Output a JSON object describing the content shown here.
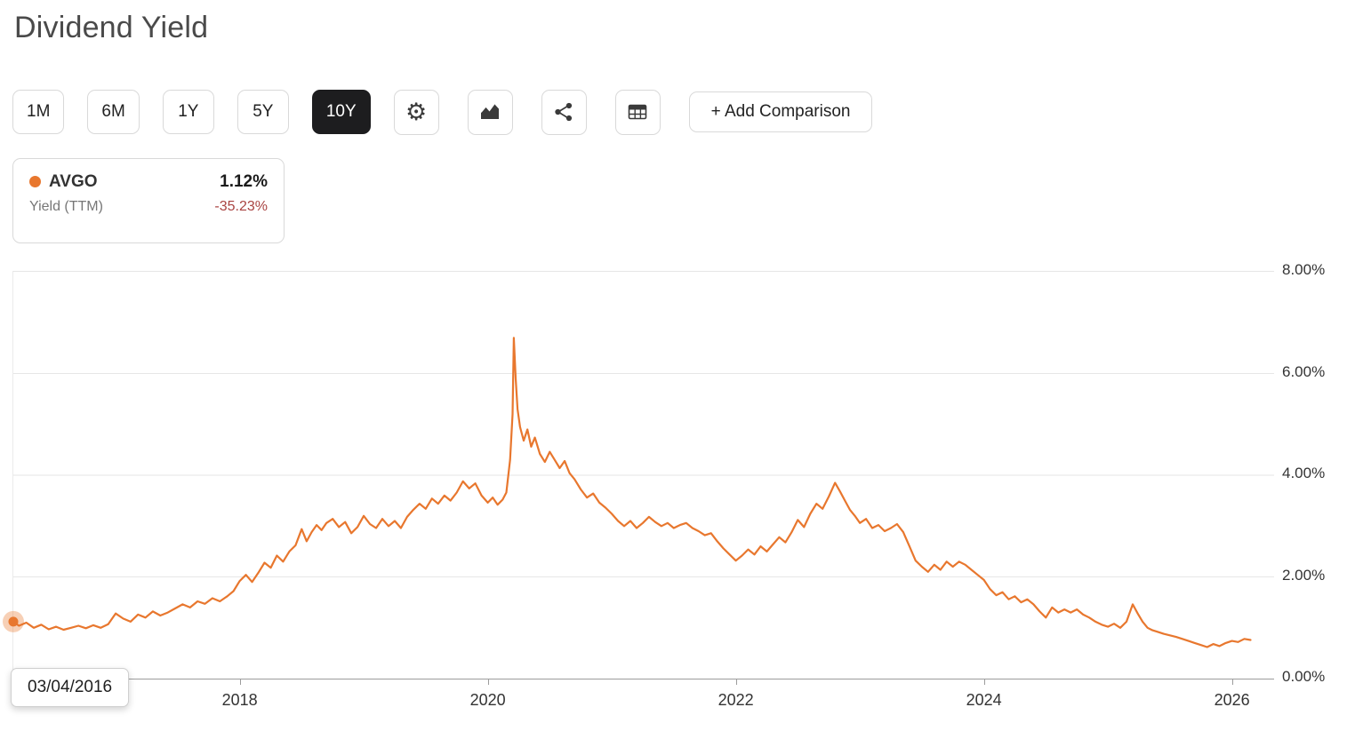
{
  "page": {
    "title": "Dividend Yield"
  },
  "toolbar": {
    "ranges": [
      {
        "label": "1M",
        "active": false
      },
      {
        "label": "6M",
        "active": false
      },
      {
        "label": "1Y",
        "active": false
      },
      {
        "label": "5Y",
        "active": false
      },
      {
        "label": "10Y",
        "active": true
      }
    ],
    "icons": [
      {
        "name": "settings-icon"
      },
      {
        "name": "area-chart-icon"
      },
      {
        "name": "share-icon"
      },
      {
        "name": "table-icon"
      }
    ],
    "add_comparison_label": "+ Add Comparison"
  },
  "legend": {
    "ticker": "AVGO",
    "metric": "Yield (TTM)",
    "value": "1.12%",
    "change": "-35.23%",
    "dot_color": "#E8772E",
    "change_color": "#A94442"
  },
  "tooltip": {
    "date": "03/04/2016"
  },
  "chart_data": {
    "type": "line",
    "title": "Dividend Yield",
    "ylabel": "Yield (TTM) %",
    "x_range": [
      2016.175,
      2026.34
    ],
    "ylim": [
      0,
      8
    ],
    "grid": true,
    "legend_position": "top-left",
    "line_color": "#E8772E",
    "grid_values": [
      2,
      4,
      6
    ],
    "yticks": [
      {
        "value": 0,
        "label": "0.00%"
      },
      {
        "value": 2,
        "label": "2.00%"
      },
      {
        "value": 4,
        "label": "4.00%"
      },
      {
        "value": 6,
        "label": "6.00%"
      },
      {
        "value": 8,
        "label": "8.00%"
      }
    ],
    "xticks": [
      {
        "value": 2018,
        "label": "2018"
      },
      {
        "value": 2020,
        "label": "2020"
      },
      {
        "value": 2022,
        "label": "2022"
      },
      {
        "value": 2024,
        "label": "2024"
      },
      {
        "value": 2026,
        "label": "2026"
      }
    ],
    "hover_marker": {
      "x": 2016.175,
      "y": 1.12,
      "halo_color": "rgba(232,119,46,0.35)"
    },
    "series": [
      {
        "name": "AVGO Yield (TTM)",
        "color": "#E8772E",
        "points": [
          [
            2016.175,
            1.12
          ],
          [
            2016.22,
            1.04
          ],
          [
            2016.28,
            1.1
          ],
          [
            2016.34,
            1.0
          ],
          [
            2016.4,
            1.06
          ],
          [
            2016.46,
            0.97
          ],
          [
            2016.52,
            1.02
          ],
          [
            2016.58,
            0.96
          ],
          [
            2016.64,
            1.0
          ],
          [
            2016.7,
            1.04
          ],
          [
            2016.76,
            0.99
          ],
          [
            2016.82,
            1.05
          ],
          [
            2016.88,
            1.0
          ],
          [
            2016.94,
            1.07
          ],
          [
            2017.0,
            1.28
          ],
          [
            2017.06,
            1.18
          ],
          [
            2017.12,
            1.12
          ],
          [
            2017.18,
            1.26
          ],
          [
            2017.24,
            1.2
          ],
          [
            2017.3,
            1.32
          ],
          [
            2017.36,
            1.24
          ],
          [
            2017.42,
            1.3
          ],
          [
            2017.48,
            1.38
          ],
          [
            2017.54,
            1.46
          ],
          [
            2017.6,
            1.4
          ],
          [
            2017.66,
            1.52
          ],
          [
            2017.72,
            1.47
          ],
          [
            2017.78,
            1.58
          ],
          [
            2017.84,
            1.52
          ],
          [
            2017.9,
            1.62
          ],
          [
            2017.95,
            1.72
          ],
          [
            2018.0,
            1.92
          ],
          [
            2018.05,
            2.04
          ],
          [
            2018.1,
            1.9
          ],
          [
            2018.15,
            2.08
          ],
          [
            2018.2,
            2.28
          ],
          [
            2018.25,
            2.18
          ],
          [
            2018.3,
            2.42
          ],
          [
            2018.35,
            2.3
          ],
          [
            2018.4,
            2.5
          ],
          [
            2018.45,
            2.62
          ],
          [
            2018.5,
            2.94
          ],
          [
            2018.54,
            2.7
          ],
          [
            2018.58,
            2.88
          ],
          [
            2018.62,
            3.02
          ],
          [
            2018.66,
            2.92
          ],
          [
            2018.7,
            3.06
          ],
          [
            2018.75,
            3.14
          ],
          [
            2018.8,
            2.98
          ],
          [
            2018.85,
            3.08
          ],
          [
            2018.9,
            2.86
          ],
          [
            2018.95,
            2.98
          ],
          [
            2019.0,
            3.2
          ],
          [
            2019.05,
            3.04
          ],
          [
            2019.1,
            2.96
          ],
          [
            2019.15,
            3.14
          ],
          [
            2019.2,
            3.0
          ],
          [
            2019.25,
            3.1
          ],
          [
            2019.3,
            2.96
          ],
          [
            2019.35,
            3.18
          ],
          [
            2019.4,
            3.32
          ],
          [
            2019.45,
            3.44
          ],
          [
            2019.5,
            3.34
          ],
          [
            2019.55,
            3.54
          ],
          [
            2019.6,
            3.44
          ],
          [
            2019.65,
            3.6
          ],
          [
            2019.7,
            3.5
          ],
          [
            2019.75,
            3.66
          ],
          [
            2019.8,
            3.88
          ],
          [
            2019.85,
            3.74
          ],
          [
            2019.9,
            3.84
          ],
          [
            2019.95,
            3.6
          ],
          [
            2020.0,
            3.46
          ],
          [
            2020.04,
            3.56
          ],
          [
            2020.08,
            3.42
          ],
          [
            2020.12,
            3.52
          ],
          [
            2020.15,
            3.66
          ],
          [
            2020.18,
            4.3
          ],
          [
            2020.2,
            5.2
          ],
          [
            2020.21,
            6.7
          ],
          [
            2020.225,
            5.9
          ],
          [
            2020.24,
            5.3
          ],
          [
            2020.26,
            4.95
          ],
          [
            2020.29,
            4.68
          ],
          [
            2020.32,
            4.9
          ],
          [
            2020.35,
            4.56
          ],
          [
            2020.38,
            4.74
          ],
          [
            2020.42,
            4.42
          ],
          [
            2020.46,
            4.26
          ],
          [
            2020.5,
            4.46
          ],
          [
            2020.54,
            4.3
          ],
          [
            2020.58,
            4.14
          ],
          [
            2020.62,
            4.28
          ],
          [
            2020.66,
            4.04
          ],
          [
            2020.7,
            3.92
          ],
          [
            2020.75,
            3.72
          ],
          [
            2020.8,
            3.56
          ],
          [
            2020.85,
            3.64
          ],
          [
            2020.9,
            3.46
          ],
          [
            2020.95,
            3.36
          ],
          [
            2021.0,
            3.24
          ],
          [
            2021.05,
            3.1
          ],
          [
            2021.1,
            3.0
          ],
          [
            2021.15,
            3.1
          ],
          [
            2021.2,
            2.96
          ],
          [
            2021.25,
            3.06
          ],
          [
            2021.3,
            3.18
          ],
          [
            2021.35,
            3.08
          ],
          [
            2021.4,
            3.0
          ],
          [
            2021.45,
            3.06
          ],
          [
            2021.5,
            2.96
          ],
          [
            2021.55,
            3.02
          ],
          [
            2021.6,
            3.06
          ],
          [
            2021.65,
            2.96
          ],
          [
            2021.7,
            2.9
          ],
          [
            2021.75,
            2.82
          ],
          [
            2021.8,
            2.86
          ],
          [
            2021.85,
            2.7
          ],
          [
            2021.9,
            2.56
          ],
          [
            2021.95,
            2.44
          ],
          [
            2022.0,
            2.32
          ],
          [
            2022.05,
            2.42
          ],
          [
            2022.1,
            2.54
          ],
          [
            2022.15,
            2.44
          ],
          [
            2022.2,
            2.6
          ],
          [
            2022.25,
            2.5
          ],
          [
            2022.3,
            2.64
          ],
          [
            2022.35,
            2.78
          ],
          [
            2022.4,
            2.68
          ],
          [
            2022.45,
            2.88
          ],
          [
            2022.5,
            3.12
          ],
          [
            2022.55,
            2.98
          ],
          [
            2022.6,
            3.24
          ],
          [
            2022.65,
            3.44
          ],
          [
            2022.7,
            3.34
          ],
          [
            2022.75,
            3.58
          ],
          [
            2022.8,
            3.85
          ],
          [
            2022.84,
            3.68
          ],
          [
            2022.88,
            3.5
          ],
          [
            2022.92,
            3.32
          ],
          [
            2022.96,
            3.2
          ],
          [
            2023.0,
            3.06
          ],
          [
            2023.05,
            3.14
          ],
          [
            2023.1,
            2.96
          ],
          [
            2023.15,
            3.02
          ],
          [
            2023.2,
            2.9
          ],
          [
            2023.25,
            2.96
          ],
          [
            2023.3,
            3.04
          ],
          [
            2023.35,
            2.88
          ],
          [
            2023.4,
            2.6
          ],
          [
            2023.45,
            2.32
          ],
          [
            2023.5,
            2.2
          ],
          [
            2023.55,
            2.1
          ],
          [
            2023.6,
            2.24
          ],
          [
            2023.65,
            2.14
          ],
          [
            2023.7,
            2.3
          ],
          [
            2023.75,
            2.2
          ],
          [
            2023.8,
            2.3
          ],
          [
            2023.85,
            2.24
          ],
          [
            2023.9,
            2.14
          ],
          [
            2023.95,
            2.04
          ],
          [
            2024.0,
            1.94
          ],
          [
            2024.05,
            1.76
          ],
          [
            2024.1,
            1.64
          ],
          [
            2024.15,
            1.7
          ],
          [
            2024.2,
            1.56
          ],
          [
            2024.25,
            1.62
          ],
          [
            2024.3,
            1.5
          ],
          [
            2024.35,
            1.56
          ],
          [
            2024.4,
            1.46
          ],
          [
            2024.45,
            1.32
          ],
          [
            2024.5,
            1.2
          ],
          [
            2024.55,
            1.4
          ],
          [
            2024.6,
            1.3
          ],
          [
            2024.65,
            1.36
          ],
          [
            2024.7,
            1.3
          ],
          [
            2024.75,
            1.36
          ],
          [
            2024.8,
            1.26
          ],
          [
            2024.85,
            1.2
          ],
          [
            2024.9,
            1.12
          ],
          [
            2024.95,
            1.06
          ],
          [
            2025.0,
            1.02
          ],
          [
            2025.05,
            1.08
          ],
          [
            2025.1,
            1.0
          ],
          [
            2025.15,
            1.12
          ],
          [
            2025.2,
            1.46
          ],
          [
            2025.24,
            1.28
          ],
          [
            2025.28,
            1.12
          ],
          [
            2025.32,
            1.0
          ],
          [
            2025.36,
            0.95
          ],
          [
            2025.4,
            0.92
          ],
          [
            2025.45,
            0.88
          ],
          [
            2025.5,
            0.85
          ],
          [
            2025.55,
            0.82
          ],
          [
            2025.6,
            0.78
          ],
          [
            2025.65,
            0.74
          ],
          [
            2025.7,
            0.7
          ],
          [
            2025.75,
            0.66
          ],
          [
            2025.8,
            0.62
          ],
          [
            2025.85,
            0.68
          ],
          [
            2025.9,
            0.64
          ],
          [
            2025.95,
            0.7
          ],
          [
            2026.0,
            0.74
          ],
          [
            2026.05,
            0.72
          ],
          [
            2026.1,
            0.78
          ],
          [
            2026.15,
            0.76
          ]
        ]
      }
    ]
  }
}
